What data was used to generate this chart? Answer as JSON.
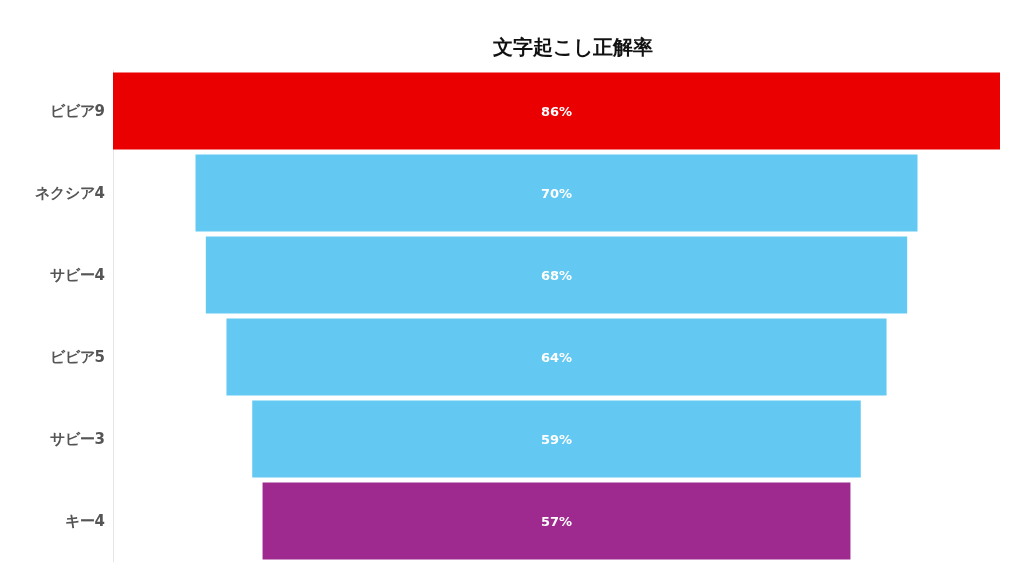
{
  "chart_data": {
    "type": "other",
    "title": "文字起こし正解率",
    "categories": [
      "ビビア9",
      "ネクシア4",
      "サビー4",
      "ビビア5",
      "サビー3",
      "キー4"
    ],
    "values": [
      86,
      70,
      68,
      64,
      59,
      57
    ],
    "colors": [
      "#ea0000",
      "#63c9f2",
      "#63c9f2",
      "#63c9f2",
      "#63c9f2",
      "#9e2a8f"
    ],
    "value_labels": [
      "86%",
      "70%",
      "68%",
      "64%",
      "59%",
      "57%"
    ]
  }
}
